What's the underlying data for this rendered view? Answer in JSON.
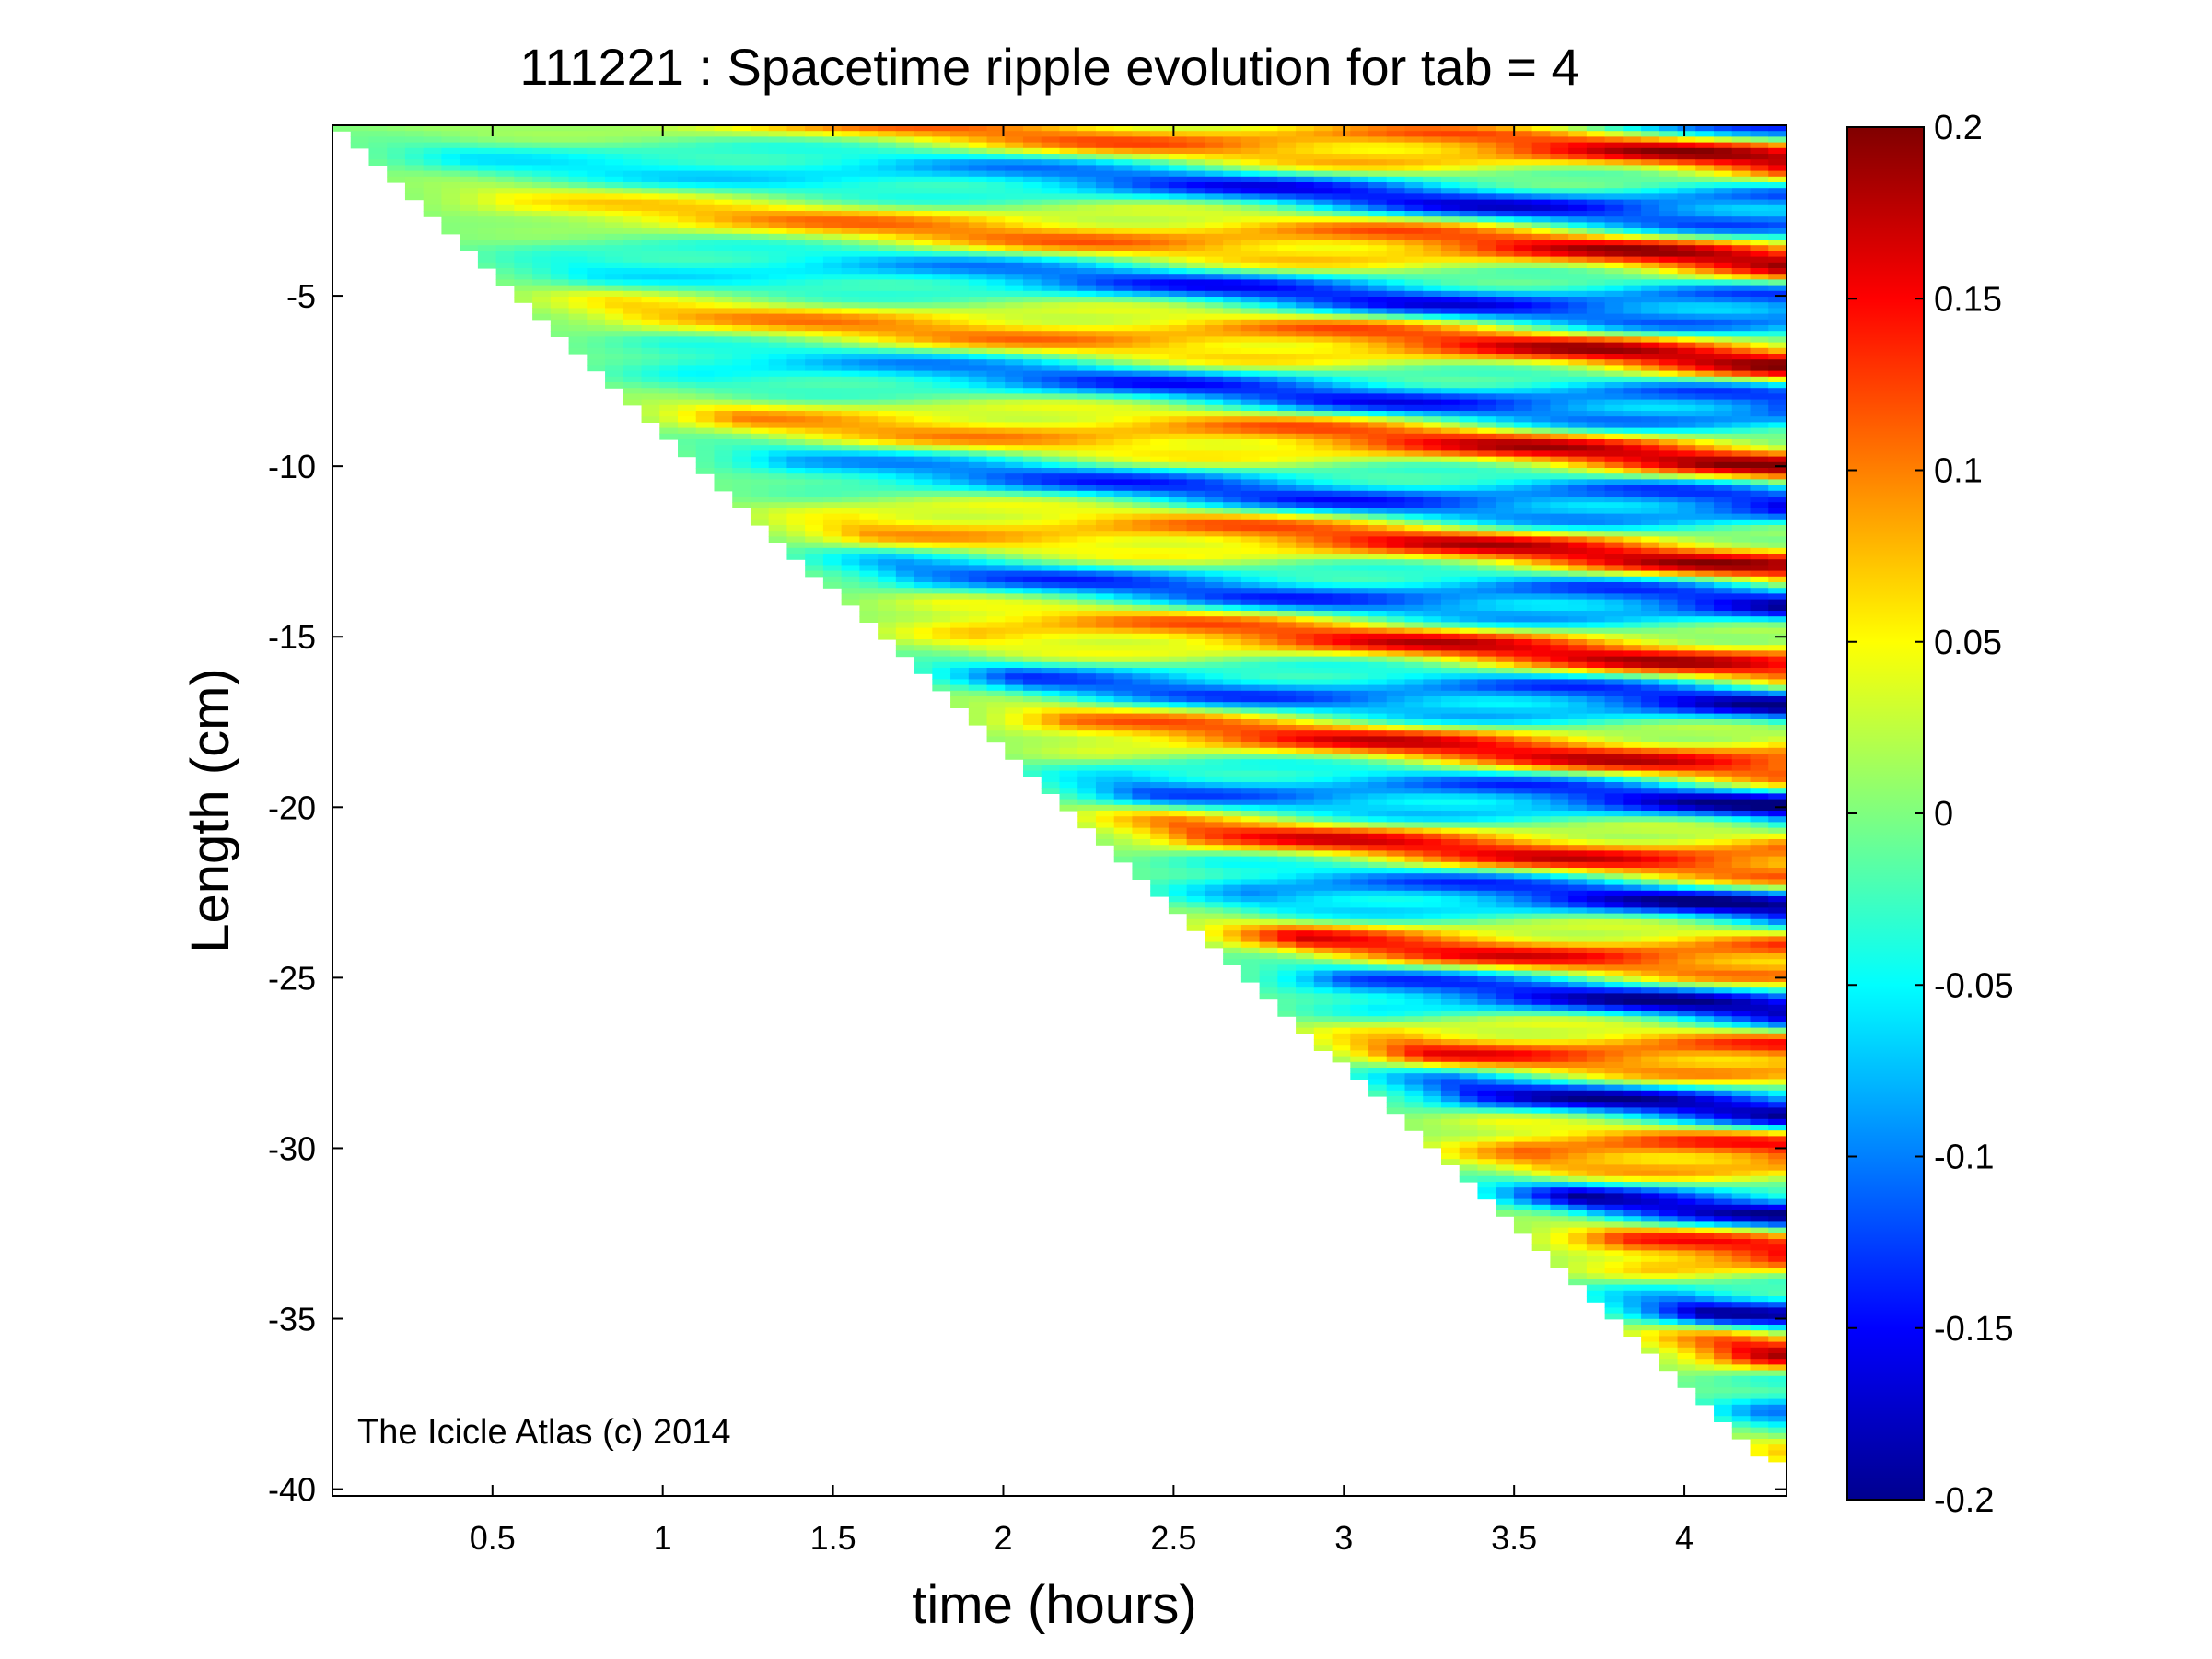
{
  "chart_data": {
    "type": "heatmap",
    "title": "111221 : Spacetime ripple evolution for tab = 4",
    "xlabel": "time (hours)",
    "ylabel": "Length (cm)",
    "xlim": [
      0.03,
      4.3
    ],
    "ylim": [
      -40.2,
      0
    ],
    "xticks": [
      0.5,
      1,
      1.5,
      2,
      2.5,
      3,
      3.5,
      4
    ],
    "xtick_labels": [
      "0.5",
      "1",
      "1.5",
      "2",
      "2.5",
      "3",
      "3.5",
      "4"
    ],
    "yticks": [
      -5,
      -10,
      -15,
      -20,
      -25,
      -30,
      -35,
      -40
    ],
    "ytick_labels": [
      "-5",
      "-10",
      "-15",
      "-20",
      "-25",
      "-30",
      "-35",
      "-40"
    ],
    "colormap": "jet",
    "clim": [
      -0.2,
      0.2
    ],
    "colorbar": {
      "ticks": [
        0.2,
        0.15,
        0.1,
        0.05,
        0,
        -0.05,
        -0.1,
        -0.15,
        -0.2
      ],
      "tick_labels": [
        "0.2",
        "0.15",
        "0.1",
        "0.05",
        "0",
        "-0.05",
        "-0.1",
        "-0.15",
        "-0.2"
      ],
      "placement": "right"
    },
    "data_extent": {
      "length_growth_cm_per_hour": -9.3,
      "max_length_cm": -39.2
    },
    "annotation": "The Icicle Atlas (c) 2014",
    "grid": false,
    "colors": {
      "low": "#00008f",
      "mid": "#7fff7f",
      "high": "#800000"
    }
  }
}
